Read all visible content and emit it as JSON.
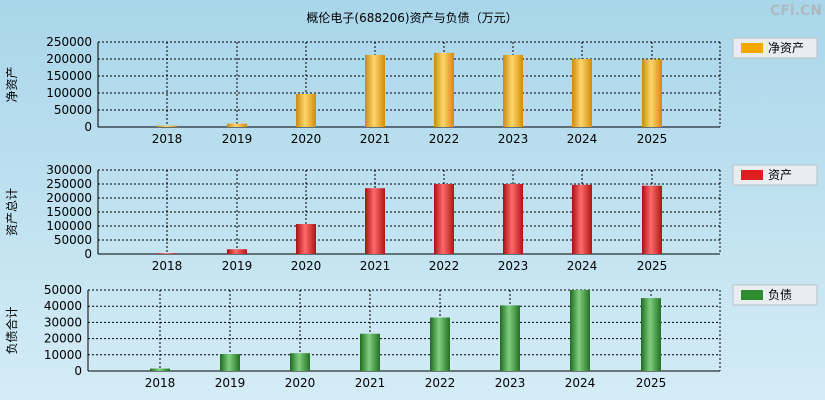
{
  "title": "概伦电子(688206)资产与负债（万元）",
  "watermark": "CFi.CN",
  "chart_data": [
    {
      "type": "bar",
      "categories": [
        "2018",
        "2019",
        "2020",
        "2021",
        "2022",
        "2023",
        "2024",
        "2025"
      ],
      "series": [
        {
          "name": "净资产",
          "values": [
            4000,
            10000,
            97000,
            212000,
            218000,
            212000,
            200000,
            199000
          ]
        }
      ],
      "ylabel": "净资产",
      "ylim": [
        0,
        250000
      ],
      "yticks": [
        0,
        50000,
        100000,
        150000,
        200000,
        250000
      ],
      "color": "#f5a800",
      "grid": true,
      "legend": "right"
    },
    {
      "type": "bar",
      "categories": [
        "2018",
        "2019",
        "2020",
        "2021",
        "2022",
        "2023",
        "2024",
        "2025"
      ],
      "series": [
        {
          "name": "资产",
          "values": [
            3000,
            17000,
            107000,
            235000,
            250000,
            250000,
            247000,
            244000
          ]
        }
      ],
      "ylabel": "资产总计",
      "ylim": [
        0,
        300000
      ],
      "yticks": [
        0,
        50000,
        100000,
        150000,
        200000,
        250000,
        300000
      ],
      "color": "#e02020",
      "grid": true,
      "legend": "right"
    },
    {
      "type": "bar",
      "categories": [
        "2018",
        "2019",
        "2020",
        "2021",
        "2022",
        "2023",
        "2024",
        "2025"
      ],
      "series": [
        {
          "name": "负债",
          "values": [
            1500,
            10500,
            11000,
            23000,
            33000,
            40500,
            50000,
            45000
          ]
        }
      ],
      "ylabel": "负债合计",
      "ylim": [
        0,
        50000
      ],
      "yticks": [
        0,
        10000,
        20000,
        30000,
        40000,
        50000
      ],
      "color": "#2e8b2e",
      "grid": true,
      "legend": "right"
    }
  ]
}
